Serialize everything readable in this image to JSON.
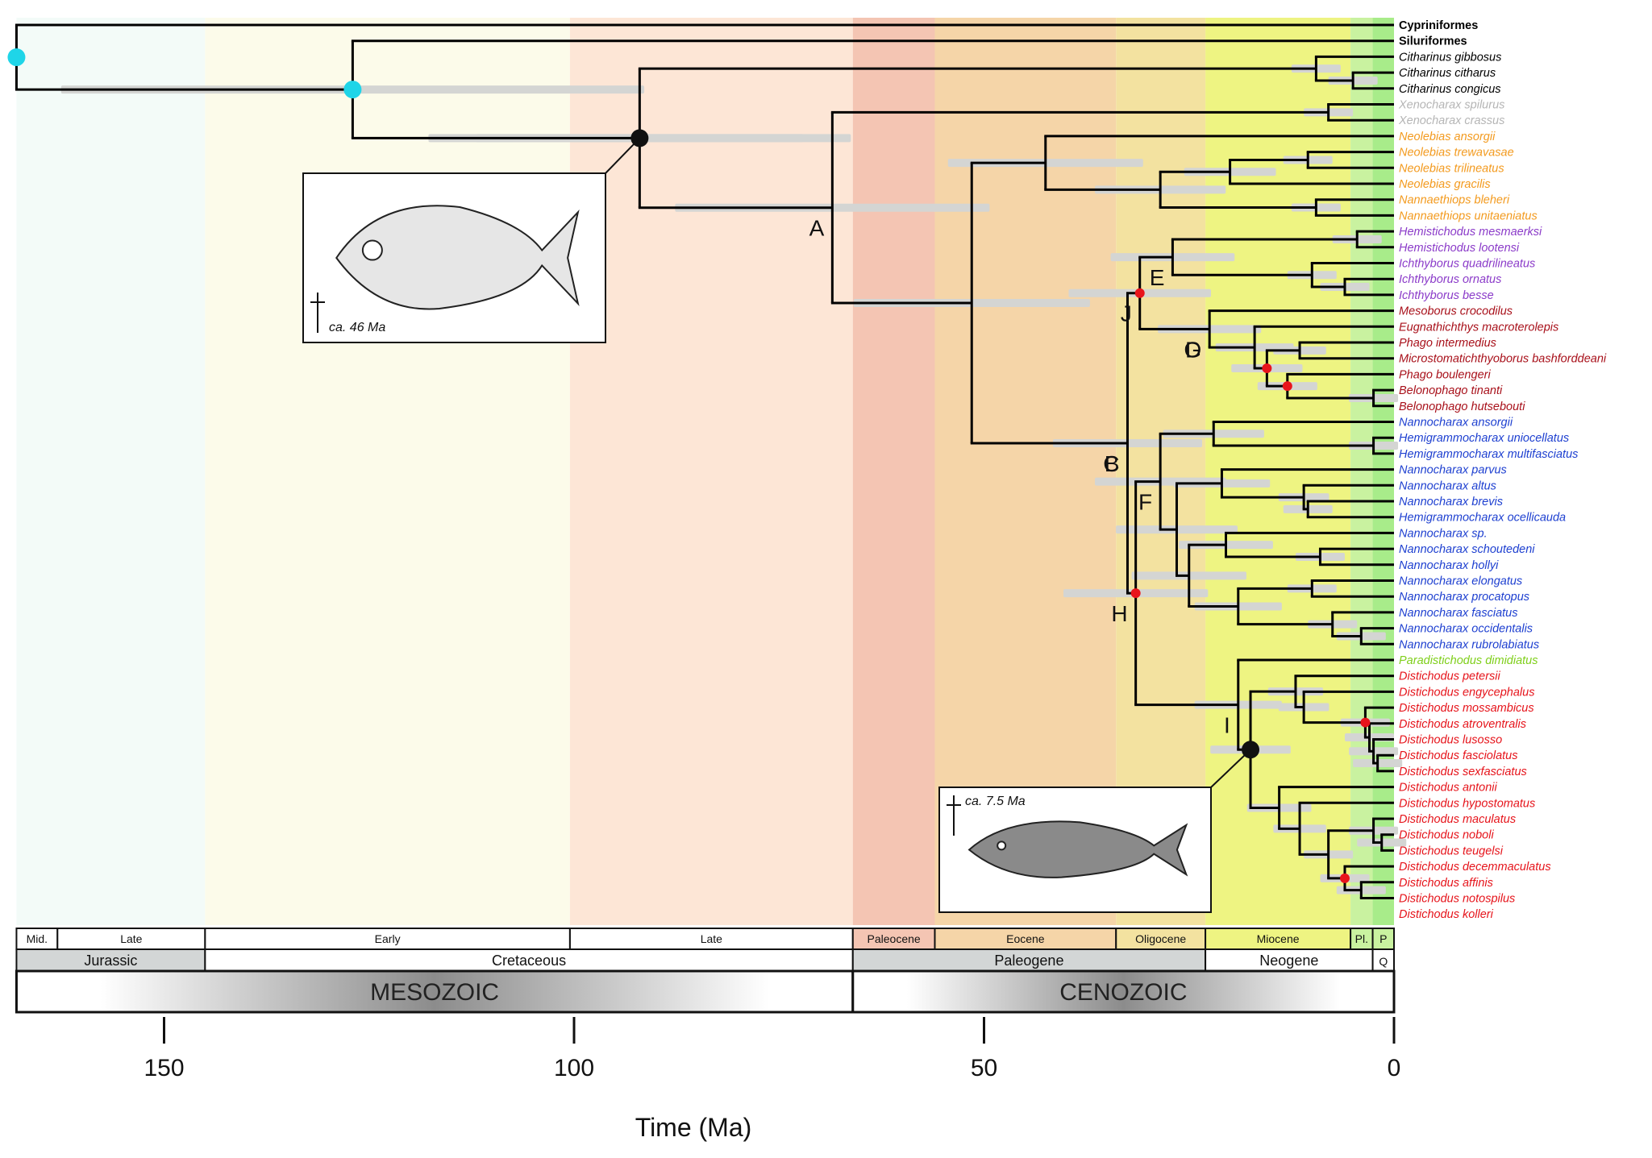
{
  "axis": {
    "title": "Time (Ma)",
    "ticks": [
      {
        "label": "150",
        "ma": 150
      },
      {
        "label": "100",
        "ma": 100
      },
      {
        "label": "50",
        "ma": 50
      },
      {
        "label": "0",
        "ma": 0
      }
    ]
  },
  "timescale": {
    "stages": [
      {
        "label": "Mid.",
        "start": 168,
        "end": 163,
        "color": "#ffffff"
      },
      {
        "label": "Late",
        "start": 163,
        "end": 145,
        "color": "#ffffff"
      },
      {
        "label": "Early",
        "start": 145,
        "end": 100.5,
        "color": "#ffffff"
      },
      {
        "label": "Late",
        "start": 100.5,
        "end": 66,
        "color": "#ffffff"
      },
      {
        "label": "Paleocene",
        "start": 66,
        "end": 56,
        "color": "#f4c5b3"
      },
      {
        "label": "Eocene",
        "start": 56,
        "end": 33.9,
        "color": "#f5d5a8"
      },
      {
        "label": "Oligocene",
        "start": 33.9,
        "end": 23,
        "color": "#f3e2a0"
      },
      {
        "label": "Miocene",
        "start": 23,
        "end": 5.3,
        "color": "#eef482"
      },
      {
        "label": "Pl.",
        "start": 5.3,
        "end": 2.6,
        "color": "#c9f2a0"
      },
      {
        "label": "P",
        "start": 2.6,
        "end": 0,
        "color": "#c9f2a0"
      }
    ],
    "periods": [
      {
        "label": "Jurassic",
        "start": 168,
        "end": 145,
        "color": "#d3d6d6"
      },
      {
        "label": "Cretaceous",
        "start": 145,
        "end": 66,
        "color": "#ffffff"
      },
      {
        "label": "Paleogene",
        "start": 66,
        "end": 23,
        "color": "#d3d6d6"
      },
      {
        "label": "Neogene",
        "start": 23,
        "end": 2.6,
        "color": "#ffffff"
      },
      {
        "label": "Q",
        "start": 2.6,
        "end": 0,
        "color": "#ffffff"
      }
    ],
    "eras": [
      {
        "label": "MESOZOIC",
        "start": 168,
        "end": 66
      },
      {
        "label": "CENOZOIC",
        "start": 66,
        "end": 0
      }
    ],
    "background_bands": [
      {
        "start": 168,
        "end": 145,
        "color": "#f3fbf8"
      },
      {
        "start": 145,
        "end": 100.5,
        "color": "#fcfbea"
      },
      {
        "start": 100.5,
        "end": 66,
        "color": "#fde6d6"
      },
      {
        "start": 66,
        "end": 56,
        "color": "#f4c5b3"
      },
      {
        "start": 56,
        "end": 33.9,
        "color": "#f5d5a8"
      },
      {
        "start": 33.9,
        "end": 23,
        "color": "#f3e2a0"
      },
      {
        "start": 23,
        "end": 5.3,
        "color": "#eef482"
      },
      {
        "start": 5.3,
        "end": 2.6,
        "color": "#c9f2a0"
      },
      {
        "start": 2.6,
        "end": 0,
        "color": "#a8ec8a"
      }
    ]
  },
  "clade_colors": {
    "outgroup": "#000000",
    "xenocharax": "#b5b5b5",
    "neolebias": "#f39a1e",
    "hemistichodus": "#8b3bc9",
    "phago": "#a8101a",
    "nannocharax": "#1d3fd0",
    "paradistichodus": "#7fcf1a",
    "distichodus": "#e6141b"
  },
  "taxa": [
    {
      "name": "Cypriniformes",
      "clade": "outgroup",
      "bold": true
    },
    {
      "name": "Siluriformes",
      "clade": "outgroup",
      "bold": true
    },
    {
      "name": "Citharinus gibbosus",
      "clade": "outgroup"
    },
    {
      "name": "Citharinus citharus",
      "clade": "outgroup"
    },
    {
      "name": "Citharinus congicus",
      "clade": "outgroup"
    },
    {
      "name": "Xenocharax spilurus",
      "clade": "xenocharax"
    },
    {
      "name": "Xenocharax crassus",
      "clade": "xenocharax"
    },
    {
      "name": "Neolebias ansorgii",
      "clade": "neolebias"
    },
    {
      "name": "Neolebias trewavasae",
      "clade": "neolebias"
    },
    {
      "name": "Neolebias trilineatus",
      "clade": "neolebias"
    },
    {
      "name": "Neolebias gracilis",
      "clade": "neolebias"
    },
    {
      "name": "Nannaethiops bleheri",
      "clade": "neolebias"
    },
    {
      "name": "Nannaethiops unitaeniatus",
      "clade": "neolebias"
    },
    {
      "name": "Hemistichodus mesmaerksi",
      "clade": "hemistichodus"
    },
    {
      "name": "Hemistichodus lootensi",
      "clade": "hemistichodus"
    },
    {
      "name": "Ichthyborus quadrilineatus",
      "clade": "hemistichodus"
    },
    {
      "name": "Ichthyborus ornatus",
      "clade": "hemistichodus"
    },
    {
      "name": "Ichthyborus besse",
      "clade": "hemistichodus"
    },
    {
      "name": "Mesoborus crocodilus",
      "clade": "phago"
    },
    {
      "name": "Eugnathichthys macroterolepis",
      "clade": "phago"
    },
    {
      "name": "Phago intermedius",
      "clade": "phago"
    },
    {
      "name": "Microstomatichthyoborus bashforddeani",
      "clade": "phago"
    },
    {
      "name": "Phago boulengeri",
      "clade": "phago"
    },
    {
      "name": "Belonophago tinanti",
      "clade": "phago"
    },
    {
      "name": "Belonophago hutsebouti",
      "clade": "phago"
    },
    {
      "name": "Nannocharax ansorgii",
      "clade": "nannocharax"
    },
    {
      "name": "Hemigrammocharax uniocellatus",
      "clade": "nannocharax"
    },
    {
      "name": "Hemigrammocharax multifasciatus",
      "clade": "nannocharax"
    },
    {
      "name": "Nannocharax parvus",
      "clade": "nannocharax"
    },
    {
      "name": "Nannocharax altus",
      "clade": "nannocharax"
    },
    {
      "name": "Nannocharax brevis",
      "clade": "nannocharax"
    },
    {
      "name": "Hemigrammocharax ocellicauda",
      "clade": "nannocharax"
    },
    {
      "name": "Nannocharax sp.",
      "clade": "nannocharax"
    },
    {
      "name": "Nannocharax schoutedeni",
      "clade": "nannocharax"
    },
    {
      "name": "Nannocharax hollyi",
      "clade": "nannocharax"
    },
    {
      "name": "Nannocharax elongatus",
      "clade": "nannocharax"
    },
    {
      "name": "Nannocharax procatopus",
      "clade": "nannocharax"
    },
    {
      "name": "Nannocharax fasciatus",
      "clade": "nannocharax"
    },
    {
      "name": "Nannocharax occidentalis",
      "clade": "nannocharax"
    },
    {
      "name": "Nannocharax rubrolabiatus",
      "clade": "nannocharax"
    },
    {
      "name": "Paradistichodus dimidiatus",
      "clade": "paradistichodus"
    },
    {
      "name": "Distichodus petersii",
      "clade": "distichodus"
    },
    {
      "name": "Distichodus engycephalus",
      "clade": "distichodus"
    },
    {
      "name": "Distichodus mossambicus",
      "clade": "distichodus"
    },
    {
      "name": "Distichodus atroventralis",
      "clade": "distichodus"
    },
    {
      "name": "Distichodus lusosso",
      "clade": "distichodus"
    },
    {
      "name": "Distichodus fasciolatus",
      "clade": "distichodus"
    },
    {
      "name": "Distichodus sexfasciatus",
      "clade": "distichodus"
    },
    {
      "name": "Distichodus antonii",
      "clade": "distichodus"
    },
    {
      "name": "Distichodus hypostomatus",
      "clade": "distichodus"
    },
    {
      "name": "Distichodus maculatus",
      "clade": "distichodus"
    },
    {
      "name": "Distichodus noboli",
      "clade": "distichodus"
    },
    {
      "name": "Distichodus teugelsi",
      "clade": "distichodus"
    },
    {
      "name": "Distichodus decemmaculatus",
      "clade": "distichodus"
    },
    {
      "name": "Distichodus affinis",
      "clade": "distichodus"
    },
    {
      "name": "Distichodus notospilus",
      "clade": "distichodus"
    },
    {
      "name": "Distichodus kolleri",
      "clade": "distichodus"
    }
  ],
  "node_labels": [
    "A",
    "B",
    "C",
    "D",
    "E",
    "F",
    "G",
    "H",
    "I",
    "J"
  ],
  "fossils": [
    {
      "label": "ca. 46 Ma",
      "age_ma": 46
    },
    {
      "label": "ca. 7.5 Ma",
      "age_ma": 7.5
    }
  ],
  "calibration_colors": {
    "outgroup_calibration": "#1fd5e8",
    "fossil_calibration": "#111111",
    "biogeographic_calibration": "#e8141b"
  }
}
